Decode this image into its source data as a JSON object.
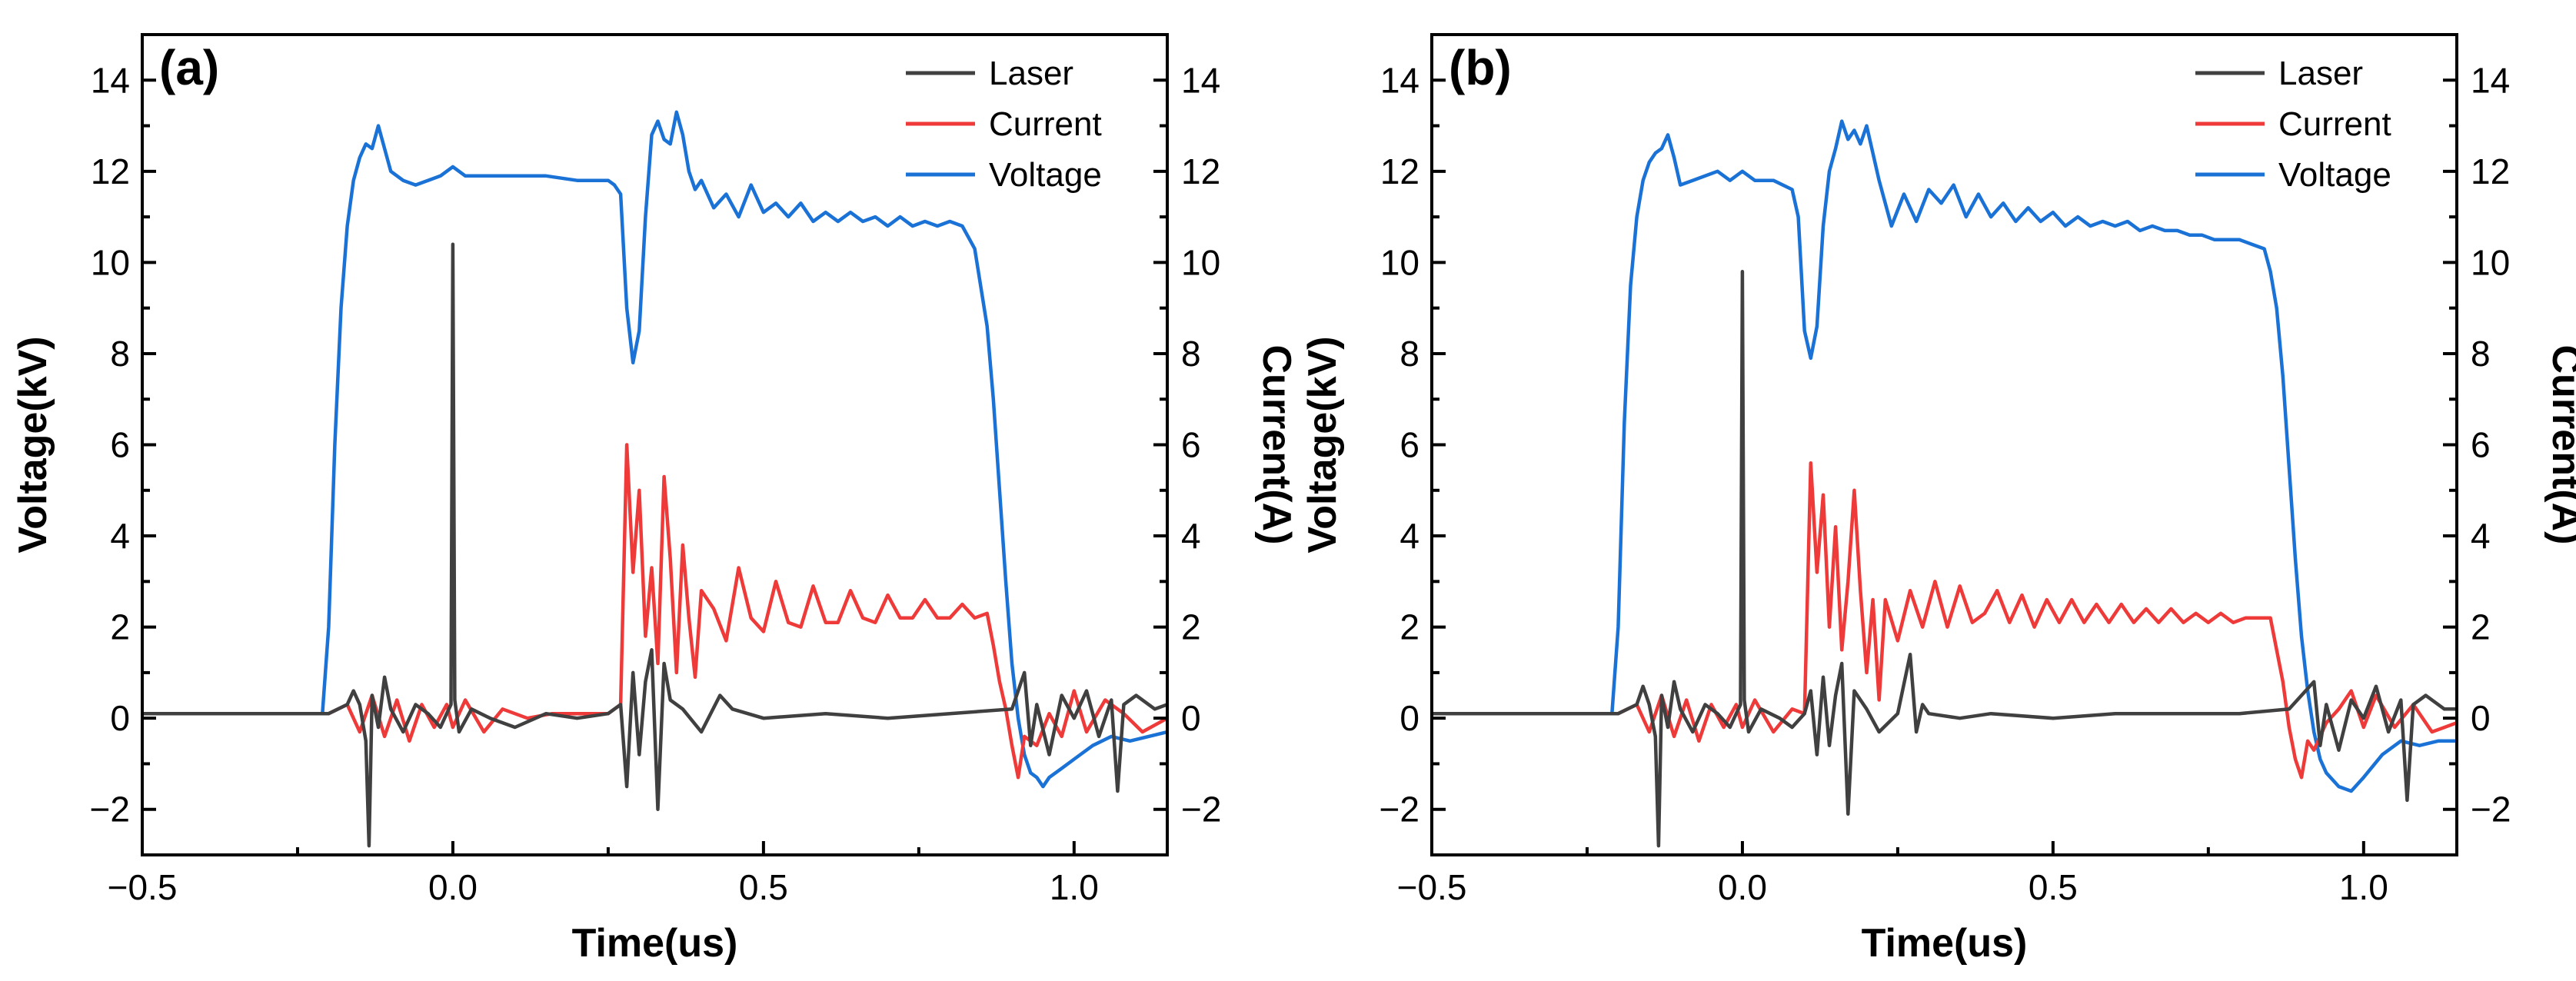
{
  "chart_data": [
    {
      "type": "line",
      "panel_label": "(a)",
      "xlabel": "Time(us)",
      "ylabel_left": "Voltage(kV)",
      "ylabel_right": "Current(A)",
      "xlim": [
        -0.5,
        1.15
      ],
      "ylim_left": [
        -3,
        15
      ],
      "ylim_right": [
        -3,
        15
      ],
      "x_ticks": [
        -0.5,
        0.0,
        0.5,
        1.0
      ],
      "x_tick_labels": [
        "−0.5",
        "0.0",
        "0.5",
        "1.0"
      ],
      "y_ticks": [
        -2,
        0,
        2,
        4,
        6,
        8,
        10,
        12,
        14
      ],
      "y_tick_labels": [
        "−2",
        "0",
        "2",
        "4",
        "6",
        "8",
        "10",
        "12",
        "14"
      ],
      "legend_position": "top-right",
      "series": [
        {
          "name": "Laser",
          "color": "#404040",
          "x": [
            -0.5,
            -0.2,
            -0.17,
            -0.16,
            -0.15,
            -0.14,
            -0.135,
            -0.13,
            -0.12,
            -0.11,
            -0.1,
            -0.08,
            -0.06,
            -0.04,
            -0.02,
            -0.01,
            -0.003,
            0.0,
            0.003,
            0.01,
            0.03,
            0.06,
            0.1,
            0.15,
            0.2,
            0.25,
            0.27,
            0.28,
            0.29,
            0.3,
            0.31,
            0.32,
            0.33,
            0.34,
            0.35,
            0.37,
            0.4,
            0.43,
            0.45,
            0.5,
            0.6,
            0.7,
            0.8,
            0.9,
            0.92,
            0.93,
            0.94,
            0.96,
            0.98,
            1.0,
            1.02,
            1.04,
            1.06,
            1.07,
            1.08,
            1.1,
            1.13,
            1.15
          ],
          "y": [
            0.1,
            0.1,
            0.3,
            0.6,
            0.3,
            -0.5,
            -2.8,
            0.5,
            -0.2,
            0.9,
            0.2,
            -0.3,
            0.3,
            0.1,
            -0.2,
            0.1,
            0.3,
            10.4,
            0.4,
            -0.3,
            0.2,
            0.0,
            -0.2,
            0.1,
            0.0,
            0.1,
            0.3,
            -1.5,
            1.0,
            -0.8,
            0.8,
            1.5,
            -2.0,
            1.2,
            0.4,
            0.2,
            -0.3,
            0.5,
            0.2,
            0.0,
            0.1,
            0.0,
            0.1,
            0.2,
            1.0,
            -0.6,
            0.3,
            -0.8,
            0.5,
            0.0,
            0.6,
            -0.4,
            0.4,
            -1.6,
            0.3,
            0.5,
            0.2,
            0.3
          ]
        },
        {
          "name": "Current",
          "color": "#ef3a3a",
          "x": [
            -0.5,
            -0.2,
            -0.17,
            -0.15,
            -0.13,
            -0.11,
            -0.09,
            -0.07,
            -0.05,
            -0.03,
            -0.01,
            0.0,
            0.02,
            0.05,
            0.08,
            0.12,
            0.16,
            0.2,
            0.25,
            0.27,
            0.28,
            0.29,
            0.3,
            0.31,
            0.32,
            0.33,
            0.34,
            0.35,
            0.36,
            0.37,
            0.38,
            0.39,
            0.4,
            0.42,
            0.44,
            0.46,
            0.48,
            0.5,
            0.52,
            0.54,
            0.56,
            0.58,
            0.6,
            0.62,
            0.64,
            0.66,
            0.68,
            0.7,
            0.72,
            0.74,
            0.76,
            0.78,
            0.8,
            0.82,
            0.84,
            0.86,
            0.87,
            0.88,
            0.89,
            0.9,
            0.91,
            0.92,
            0.94,
            0.96,
            0.98,
            1.0,
            1.02,
            1.05,
            1.08,
            1.11,
            1.15
          ],
          "y": [
            0.1,
            0.1,
            0.3,
            -0.3,
            0.5,
            -0.4,
            0.4,
            -0.5,
            0.3,
            -0.2,
            0.3,
            -0.2,
            0.4,
            -0.3,
            0.2,
            0.0,
            0.1,
            0.1,
            0.1,
            0.3,
            6.0,
            3.2,
            5.0,
            1.8,
            3.3,
            1.2,
            5.3,
            3.5,
            1.0,
            3.8,
            2.2,
            0.9,
            2.8,
            2.4,
            1.7,
            3.3,
            2.2,
            1.9,
            3.0,
            2.1,
            2.0,
            2.9,
            2.1,
            2.1,
            2.8,
            2.2,
            2.1,
            2.7,
            2.2,
            2.2,
            2.6,
            2.2,
            2.2,
            2.5,
            2.2,
            2.3,
            1.6,
            0.8,
            0.2,
            -0.6,
            -1.3,
            -0.4,
            -0.6,
            0.1,
            -0.4,
            0.6,
            -0.3,
            0.4,
            0.1,
            -0.3,
            0.0
          ]
        },
        {
          "name": "Voltage",
          "color": "#1b72d6",
          "x": [
            -0.5,
            -0.21,
            -0.2,
            -0.19,
            -0.18,
            -0.17,
            -0.16,
            -0.15,
            -0.14,
            -0.13,
            -0.12,
            -0.11,
            -0.1,
            -0.08,
            -0.06,
            -0.04,
            -0.02,
            0.0,
            0.02,
            0.05,
            0.1,
            0.15,
            0.2,
            0.25,
            0.26,
            0.27,
            0.28,
            0.29,
            0.3,
            0.31,
            0.32,
            0.33,
            0.34,
            0.35,
            0.36,
            0.37,
            0.38,
            0.39,
            0.4,
            0.42,
            0.44,
            0.46,
            0.48,
            0.5,
            0.52,
            0.54,
            0.56,
            0.58,
            0.6,
            0.62,
            0.64,
            0.66,
            0.68,
            0.7,
            0.72,
            0.74,
            0.76,
            0.78,
            0.8,
            0.82,
            0.84,
            0.86,
            0.87,
            0.88,
            0.89,
            0.9,
            0.91,
            0.92,
            0.93,
            0.94,
            0.95,
            0.96,
            0.98,
            1.0,
            1.03,
            1.06,
            1.09,
            1.12,
            1.15
          ],
          "y": [
            0.1,
            0.1,
            2.0,
            6.0,
            9.0,
            10.8,
            11.8,
            12.3,
            12.6,
            12.5,
            13.0,
            12.5,
            12.0,
            11.8,
            11.7,
            11.8,
            11.9,
            12.1,
            11.9,
            11.9,
            11.9,
            11.9,
            11.8,
            11.8,
            11.7,
            11.5,
            9.0,
            7.8,
            8.5,
            11.0,
            12.8,
            13.1,
            12.7,
            12.6,
            13.3,
            12.8,
            12.0,
            11.6,
            11.8,
            11.2,
            11.5,
            11.0,
            11.7,
            11.1,
            11.3,
            11.0,
            11.3,
            10.9,
            11.1,
            10.9,
            11.1,
            10.9,
            11.0,
            10.8,
            11.0,
            10.8,
            10.9,
            10.8,
            10.9,
            10.8,
            10.3,
            8.6,
            7.0,
            5.0,
            3.0,
            1.2,
            0.0,
            -0.8,
            -1.2,
            -1.3,
            -1.5,
            -1.3,
            -1.1,
            -0.9,
            -0.6,
            -0.4,
            -0.5,
            -0.4,
            -0.3
          ]
        }
      ]
    },
    {
      "type": "line",
      "panel_label": "(b)",
      "xlabel": "Time(us)",
      "ylabel_left": "Voltage(kV)",
      "ylabel_right": "Current(A)",
      "xlim": [
        -0.5,
        1.15
      ],
      "ylim_left": [
        -3,
        15
      ],
      "ylim_right": [
        -3,
        15
      ],
      "x_ticks": [
        -0.5,
        0.0,
        0.5,
        1.0
      ],
      "x_tick_labels": [
        "−0.5",
        "0.0",
        "0.5",
        "1.0"
      ],
      "y_ticks": [
        -2,
        0,
        2,
        4,
        6,
        8,
        10,
        12,
        14
      ],
      "y_tick_labels": [
        "−2",
        "0",
        "2",
        "4",
        "6",
        "8",
        "10",
        "12",
        "14"
      ],
      "legend_position": "top-right",
      "series": [
        {
          "name": "Laser",
          "color": "#404040",
          "x": [
            -0.5,
            -0.2,
            -0.17,
            -0.16,
            -0.15,
            -0.14,
            -0.135,
            -0.13,
            -0.12,
            -0.11,
            -0.1,
            -0.08,
            -0.06,
            -0.04,
            -0.02,
            -0.01,
            -0.003,
            0.0,
            0.003,
            0.01,
            0.03,
            0.06,
            0.08,
            0.1,
            0.11,
            0.12,
            0.13,
            0.14,
            0.15,
            0.16,
            0.17,
            0.18,
            0.2,
            0.22,
            0.25,
            0.27,
            0.28,
            0.29,
            0.3,
            0.35,
            0.4,
            0.5,
            0.6,
            0.7,
            0.8,
            0.88,
            0.92,
            0.93,
            0.94,
            0.96,
            0.98,
            1.0,
            1.02,
            1.04,
            1.06,
            1.07,
            1.08,
            1.1,
            1.13,
            1.15
          ],
          "y": [
            0.1,
            0.1,
            0.3,
            0.7,
            0.3,
            -0.4,
            -2.8,
            0.5,
            -0.2,
            0.8,
            0.2,
            -0.3,
            0.3,
            0.1,
            -0.2,
            0.1,
            0.3,
            9.8,
            0.4,
            -0.3,
            0.2,
            0.0,
            -0.2,
            0.1,
            0.6,
            -0.8,
            0.9,
            -0.6,
            0.5,
            1.2,
            -2.1,
            0.6,
            0.2,
            -0.3,
            0.1,
            1.4,
            -0.3,
            0.3,
            0.1,
            0.0,
            0.1,
            0.0,
            0.1,
            0.1,
            0.1,
            0.2,
            0.8,
            -0.6,
            0.3,
            -0.7,
            0.4,
            0.0,
            0.7,
            -0.3,
            0.4,
            -1.8,
            0.3,
            0.5,
            0.2,
            0.2
          ]
        },
        {
          "name": "Current",
          "color": "#ef3a3a",
          "x": [
            -0.5,
            -0.2,
            -0.17,
            -0.15,
            -0.13,
            -0.11,
            -0.09,
            -0.07,
            -0.05,
            -0.03,
            -0.01,
            0.0,
            0.02,
            0.05,
            0.08,
            0.1,
            0.11,
            0.12,
            0.13,
            0.14,
            0.15,
            0.16,
            0.17,
            0.18,
            0.19,
            0.2,
            0.21,
            0.22,
            0.23,
            0.25,
            0.27,
            0.29,
            0.31,
            0.33,
            0.35,
            0.37,
            0.39,
            0.41,
            0.43,
            0.45,
            0.47,
            0.49,
            0.51,
            0.53,
            0.55,
            0.57,
            0.59,
            0.61,
            0.63,
            0.65,
            0.67,
            0.69,
            0.71,
            0.73,
            0.75,
            0.77,
            0.79,
            0.81,
            0.83,
            0.85,
            0.86,
            0.87,
            0.88,
            0.89,
            0.9,
            0.91,
            0.92,
            0.94,
            0.96,
            0.98,
            1.0,
            1.02,
            1.05,
            1.08,
            1.11,
            1.15
          ],
          "y": [
            0.1,
            0.1,
            0.3,
            -0.3,
            0.5,
            -0.4,
            0.4,
            -0.5,
            0.3,
            -0.2,
            0.3,
            -0.2,
            0.4,
            -0.3,
            0.2,
            0.1,
            5.6,
            3.2,
            4.9,
            2.0,
            4.2,
            1.5,
            3.0,
            5.0,
            2.8,
            1.0,
            2.6,
            0.4,
            2.6,
            1.7,
            2.8,
            2.0,
            3.0,
            2.0,
            2.9,
            2.1,
            2.3,
            2.8,
            2.1,
            2.7,
            2.0,
            2.6,
            2.1,
            2.6,
            2.1,
            2.5,
            2.1,
            2.5,
            2.1,
            2.4,
            2.1,
            2.4,
            2.1,
            2.3,
            2.1,
            2.3,
            2.1,
            2.2,
            2.2,
            2.2,
            1.5,
            0.8,
            -0.2,
            -0.9,
            -1.3,
            -0.5,
            -0.7,
            -0.1,
            0.2,
            0.6,
            -0.2,
            0.5,
            -0.2,
            0.3,
            -0.3,
            -0.1
          ]
        },
        {
          "name": "Voltage",
          "color": "#1b72d6",
          "x": [
            -0.5,
            -0.21,
            -0.2,
            -0.19,
            -0.18,
            -0.17,
            -0.16,
            -0.15,
            -0.14,
            -0.13,
            -0.12,
            -0.11,
            -0.1,
            -0.08,
            -0.06,
            -0.04,
            -0.02,
            0.0,
            0.02,
            0.05,
            0.08,
            0.09,
            0.1,
            0.11,
            0.12,
            0.13,
            0.14,
            0.15,
            0.16,
            0.17,
            0.18,
            0.19,
            0.2,
            0.21,
            0.22,
            0.24,
            0.26,
            0.28,
            0.3,
            0.32,
            0.34,
            0.36,
            0.38,
            0.4,
            0.42,
            0.44,
            0.46,
            0.48,
            0.5,
            0.52,
            0.54,
            0.56,
            0.58,
            0.6,
            0.62,
            0.64,
            0.66,
            0.68,
            0.7,
            0.72,
            0.74,
            0.76,
            0.78,
            0.8,
            0.82,
            0.84,
            0.85,
            0.86,
            0.87,
            0.88,
            0.89,
            0.9,
            0.91,
            0.92,
            0.93,
            0.94,
            0.96,
            0.98,
            1.0,
            1.03,
            1.06,
            1.09,
            1.12,
            1.15
          ],
          "y": [
            0.1,
            0.1,
            2.0,
            6.5,
            9.5,
            11.0,
            11.8,
            12.2,
            12.4,
            12.5,
            12.8,
            12.3,
            11.7,
            11.8,
            11.9,
            12.0,
            11.8,
            12.0,
            11.8,
            11.8,
            11.6,
            11.0,
            8.5,
            7.9,
            8.6,
            10.8,
            12.0,
            12.5,
            13.1,
            12.7,
            12.9,
            12.6,
            13.0,
            12.4,
            11.8,
            10.8,
            11.5,
            10.9,
            11.6,
            11.3,
            11.7,
            11.0,
            11.5,
            11.0,
            11.3,
            10.9,
            11.2,
            10.9,
            11.1,
            10.8,
            11.0,
            10.8,
            10.9,
            10.8,
            10.9,
            10.7,
            10.8,
            10.7,
            10.7,
            10.6,
            10.6,
            10.5,
            10.5,
            10.5,
            10.4,
            10.3,
            9.8,
            9.0,
            7.5,
            5.5,
            3.5,
            1.8,
            0.6,
            -0.3,
            -0.9,
            -1.2,
            -1.5,
            -1.6,
            -1.3,
            -0.8,
            -0.5,
            -0.6,
            -0.5,
            -0.5
          ]
        }
      ]
    }
  ]
}
